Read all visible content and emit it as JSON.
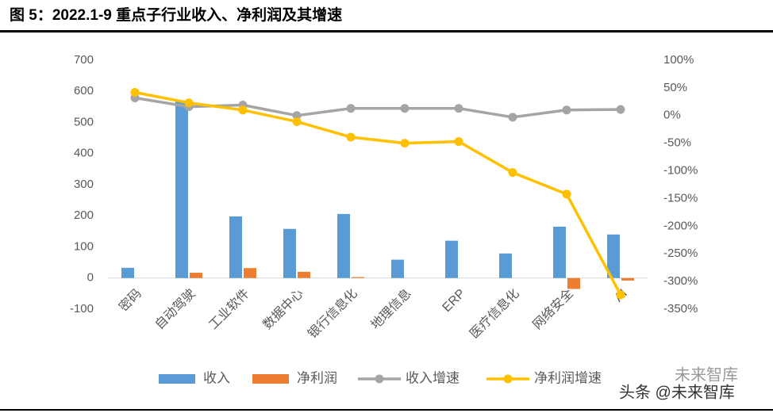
{
  "chart_data": {
    "type": "bar_line",
    "title": "图 5：2022.1-9 重点子行业收入、净利润及其增速",
    "categories": [
      "密码",
      "自动驾驶",
      "工业软件",
      "数据中心",
      "银行信息化",
      "地理信息",
      "ERP",
      "医疗信息化",
      "网络安全",
      "AI"
    ],
    "series": [
      {
        "name": "收入",
        "color": "#5b9bd5",
        "kind": "bar",
        "values": [
          33,
          567,
          198,
          158,
          206,
          59,
          120,
          79,
          165,
          140
        ]
      },
      {
        "name": "净利润",
        "color": "#ed7d31",
        "kind": "bar",
        "values": [
          0,
          17,
          32,
          20,
          3,
          0,
          0,
          0,
          -35,
          -8
        ]
      },
      {
        "name": "收入增速",
        "color": "#a5a5a5",
        "kind": "line",
        "axis": "y2",
        "values": [
          32,
          16,
          19,
          0,
          13,
          13,
          13,
          -3,
          10,
          11
        ]
      },
      {
        "name": "净利润增速",
        "color": "#ffc000",
        "kind": "line",
        "axis": "y2",
        "values": [
          42,
          23,
          10,
          -11,
          -39,
          -50,
          -47,
          -103,
          -142,
          -324
        ]
      }
    ],
    "ylim": [
      -100,
      700
    ],
    "yticks": [
      -100,
      0,
      100,
      200,
      300,
      400,
      500,
      600,
      700
    ],
    "y2lim": [
      -350,
      100
    ],
    "y2ticks": [
      {
        "value": -350,
        "label": "-350%"
      },
      {
        "value": -300,
        "label": "-300%"
      },
      {
        "value": -250,
        "label": "-250%"
      },
      {
        "value": -200,
        "label": "-200%"
      },
      {
        "value": -150,
        "label": "-150%"
      },
      {
        "value": -100,
        "label": "-100%"
      },
      {
        "value": -50,
        "label": "-50%"
      },
      {
        "value": 0,
        "label": "0%"
      },
      {
        "value": 50,
        "label": "50%"
      },
      {
        "value": 100,
        "label": "100%"
      }
    ],
    "legend": "bottom",
    "watermark": [
      "未来智库",
      "头条 @未来智库"
    ]
  }
}
